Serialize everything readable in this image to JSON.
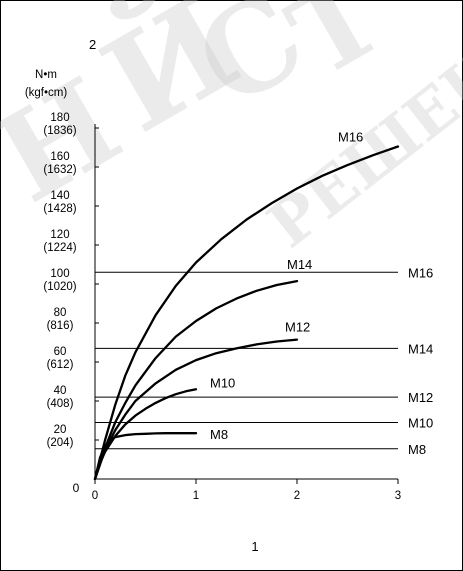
{
  "chart_data": {
    "type": "line",
    "panel_label": "2",
    "y_unit_line1": "N•m",
    "y_unit_line2": "(kgf•cm)",
    "x_axis_caption": "1",
    "xlim": [
      0,
      3
    ],
    "ylim": [
      0,
      180
    ],
    "x_ticks": [
      0,
      1,
      2,
      3
    ],
    "x_tick_labels": [
      "0",
      "1",
      "2",
      "3"
    ],
    "y_ticks": [
      {
        "value": 0,
        "nm": "0",
        "kgf": ""
      },
      {
        "value": 20,
        "nm": "20",
        "kgf": "(204)"
      },
      {
        "value": 40,
        "nm": "40",
        "kgf": "(408)"
      },
      {
        "value": 60,
        "nm": "60",
        "kgf": "(612)"
      },
      {
        "value": 80,
        "nm": "80",
        "kgf": "(816)"
      },
      {
        "value": 100,
        "nm": "100",
        "kgf": "(1020)"
      },
      {
        "value": 120,
        "nm": "120",
        "kgf": "(1224)"
      },
      {
        "value": 140,
        "nm": "140",
        "kgf": "(1428)"
      },
      {
        "value": 160,
        "nm": "160",
        "kgf": "(1632)"
      },
      {
        "value": 180,
        "nm": "180",
        "kgf": "(1836)"
      }
    ],
    "series": [
      {
        "name": "M8",
        "x": [
          0,
          0.05,
          0.1,
          0.15,
          0.2,
          0.3,
          0.4,
          0.5,
          0.6,
          0.7,
          0.8,
          0.9,
          1.0
        ],
        "y": [
          0,
          11,
          17,
          20,
          21.5,
          22.5,
          23,
          23.2,
          23.4,
          23.5,
          23.5,
          23.5,
          23.5
        ]
      },
      {
        "name": "M10",
        "x": [
          0,
          0.05,
          0.1,
          0.2,
          0.3,
          0.4,
          0.5,
          0.6,
          0.7,
          0.8,
          0.9,
          1.0
        ],
        "y": [
          0,
          8,
          14,
          22,
          28,
          32.5,
          36,
          39,
          41.5,
          43.5,
          45,
          46
        ]
      },
      {
        "name": "M12",
        "x": [
          0,
          0.1,
          0.2,
          0.3,
          0.4,
          0.6,
          0.8,
          1.0,
          1.2,
          1.4,
          1.6,
          1.8,
          2.0
        ],
        "y": [
          0,
          15,
          25,
          33,
          40,
          49,
          56,
          61,
          64.5,
          67,
          69,
          70.5,
          71.5
        ]
      },
      {
        "name": "M14",
        "x": [
          0,
          0.1,
          0.2,
          0.3,
          0.4,
          0.6,
          0.8,
          1.0,
          1.2,
          1.4,
          1.6,
          1.8,
          2.0
        ],
        "y": [
          0,
          16,
          29,
          39,
          48,
          62,
          73,
          81,
          87.5,
          92.5,
          96.5,
          99.5,
          101.5
        ]
      },
      {
        "name": "M16",
        "x": [
          0,
          0.1,
          0.2,
          0.3,
          0.4,
          0.6,
          0.8,
          1.0,
          1.25,
          1.5,
          1.75,
          2.0,
          2.25,
          2.5,
          2.75,
          3.0
        ],
        "y": [
          0,
          20,
          38,
          53,
          65,
          84,
          99,
          111,
          123,
          133,
          141.5,
          149,
          155.5,
          161,
          166,
          170.5
        ]
      }
    ],
    "limits": [
      {
        "label": "M16",
        "value": 106
      },
      {
        "label": "M14",
        "value": 67
      },
      {
        "label": "M12",
        "value": 42
      },
      {
        "label": "M10",
        "value": 29
      },
      {
        "label": "M8",
        "value": 15.5
      }
    ],
    "grid": false,
    "legend": "none",
    "line_color": "#000000",
    "watermark_text": [
      "Н",
      "Й",
      "С",
      "Т",
      "РЕШЕН"
    ]
  }
}
